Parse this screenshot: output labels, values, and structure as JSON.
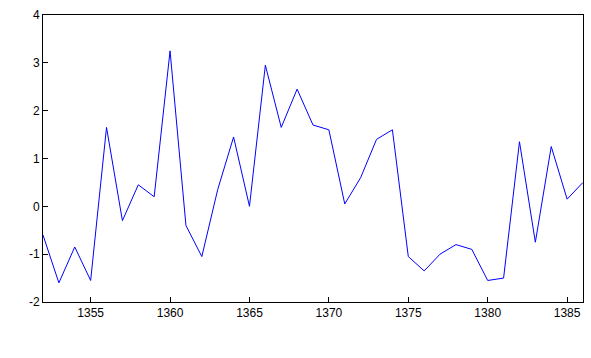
{
  "chart_data": {
    "type": "line",
    "x": [
      1352,
      1353,
      1354,
      1355,
      1356,
      1357,
      1358,
      1359,
      1360,
      1361,
      1362,
      1363,
      1364,
      1365,
      1366,
      1367,
      1368,
      1369,
      1370,
      1371,
      1372,
      1373,
      1374,
      1375,
      1376,
      1377,
      1378,
      1379,
      1380,
      1381,
      1382,
      1383,
      1384,
      1385,
      1386
    ],
    "values": [
      -0.6,
      -1.6,
      -0.85,
      -1.55,
      1.65,
      -0.3,
      0.45,
      0.2,
      3.25,
      -0.4,
      -1.05,
      0.35,
      1.45,
      0.0,
      2.95,
      1.65,
      2.45,
      1.7,
      1.6,
      0.05,
      0.6,
      1.4,
      1.6,
      -1.05,
      -1.35,
      -1.0,
      -0.8,
      -0.9,
      -1.55,
      -1.5,
      1.35,
      -0.75,
      1.25,
      0.15,
      0.5
    ],
    "color": "#0000ff",
    "xlim": [
      1352,
      1386
    ],
    "xticks": [
      1355,
      1360,
      1365,
      1370,
      1375,
      1380,
      1385
    ],
    "ylim": [
      -2,
      4
    ],
    "yticks": [
      -2,
      -1,
      0,
      1,
      2,
      3,
      4
    ],
    "grid": false
  }
}
